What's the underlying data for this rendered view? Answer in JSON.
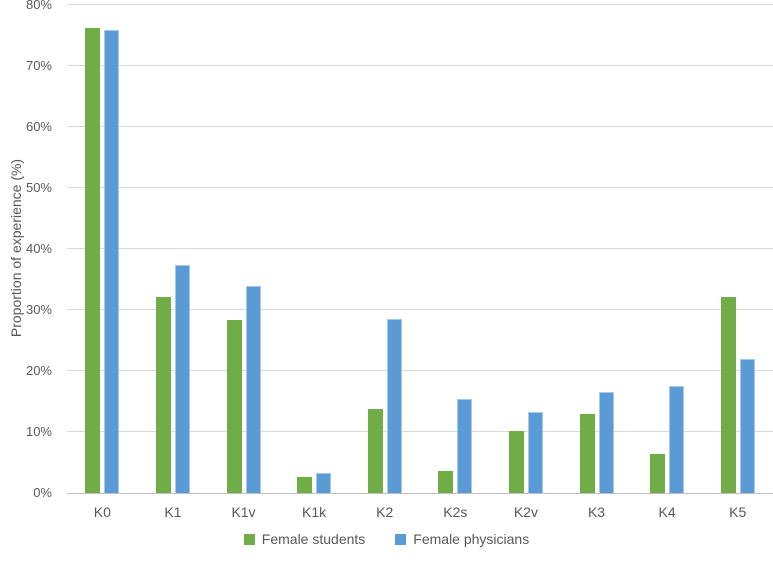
{
  "chart_data": {
    "type": "bar",
    "title": "",
    "xlabel": "",
    "ylabel": "Proportion of experience (%)",
    "categories": [
      "K0",
      "K1",
      "K1v",
      "K1k",
      "K2",
      "K2s",
      "K2v",
      "K3",
      "K4",
      "K5"
    ],
    "series": [
      {
        "name": "Female students",
        "color": "#70AD47",
        "values": [
          76.2,
          32.1,
          28.4,
          2.7,
          13.8,
          3.6,
          10.1,
          12.9,
          6.4,
          32.1
        ]
      },
      {
        "name": "Female physicians",
        "color": "#5B9BD5",
        "values": [
          75.9,
          37.3,
          34.0,
          3.2,
          28.5,
          15.4,
          13.2,
          16.5,
          17.6,
          22.0
        ]
      }
    ],
    "ylim": [
      0,
      80
    ],
    "ytick_step": 10,
    "ytick_suffix": "%",
    "grid": true,
    "legend_position": "bottom"
  },
  "colors": {
    "gridline": "#D9D9D9",
    "axis_line": "#BFBFBF",
    "text": "#595959"
  }
}
